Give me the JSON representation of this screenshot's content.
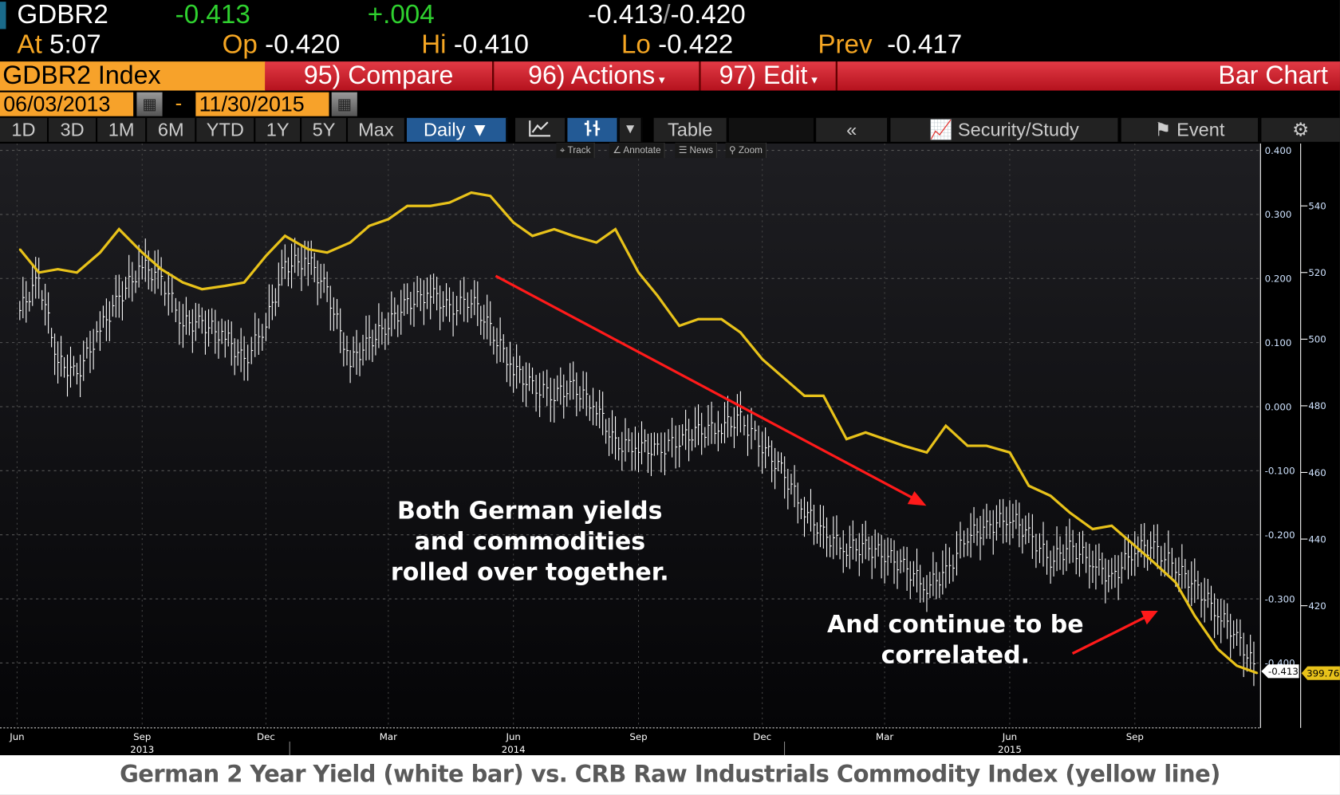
{
  "quote": {
    "ticker": "GDBR2",
    "last": "-0.413",
    "change": "+.004",
    "bid_ask_bid": "-0.413",
    "bid_ask_sep": "/",
    "bid_ask_ask": "-0.420",
    "at_label": "At",
    "at_value": "5:07",
    "op_label": "Op",
    "op_value": "-0.420",
    "hi_label": "Hi",
    "hi_value": "-0.410",
    "lo_label": "Lo",
    "lo_value": "-0.422",
    "prev_label": "Prev",
    "prev_value": "-0.417"
  },
  "menu": {
    "security": "GDBR2 Index",
    "compare": "95) Compare",
    "actions": "96) Actions",
    "edit": "97) Edit",
    "dropdown_glyph": "▾",
    "chart_type": "Bar Chart"
  },
  "dates": {
    "start": "06/03/2013",
    "sep": "-",
    "end": "11/30/2015"
  },
  "toolbar": {
    "periods": [
      "1D",
      "3D",
      "1M",
      "6M",
      "YTD",
      "1Y",
      "5Y",
      "Max"
    ],
    "frequency": "Daily ▼",
    "table": "Table",
    "collapse": "«",
    "security_study": "Security/Study",
    "event": "Event"
  },
  "mini_toolbar": {
    "track": "Track",
    "annotate": "Annotate",
    "news": "News",
    "zoom": "Zoom"
  },
  "annotations": {
    "text1": [
      "Both German yields",
      "and commodities",
      "rolled over together."
    ],
    "text2": [
      "And continue to be",
      "correlated."
    ]
  },
  "caption": "German 2 Year Yield (white bar) vs. CRB Raw Industrials Commodity Index (yellow line)",
  "colors": {
    "yield": "#ffffff",
    "crb": "#e8c21a",
    "arrow": "#ff1a1a",
    "menu_red": "#c8202b",
    "orange": "#f7a22a",
    "blue": "#235a95"
  },
  "chart_data": {
    "type": "line",
    "title": "German 2 Year Yield (white bar) vs. CRB Raw Industrials Commodity Index (yellow line)",
    "x_months": [
      {
        "label": "Jun",
        "date": "2013-06-01"
      },
      {
        "label": "Sep",
        "date": "2013-09-01"
      },
      {
        "label": "Dec",
        "date": "2013-12-01"
      },
      {
        "label": "Mar",
        "date": "2014-03-01"
      },
      {
        "label": "Jun",
        "date": "2014-06-01"
      },
      {
        "label": "Sep",
        "date": "2014-09-01"
      },
      {
        "label": "Dec",
        "date": "2014-12-01"
      },
      {
        "label": "Mar",
        "date": "2015-03-01"
      },
      {
        "label": "Jun",
        "date": "2015-06-01"
      },
      {
        "label": "Sep",
        "date": "2015-09-01"
      }
    ],
    "x_years": [
      {
        "label": "2013",
        "date": "2013-09-01"
      },
      {
        "label": "2014",
        "date": "2014-06-01"
      },
      {
        "label": "2015",
        "date": "2015-06-01"
      }
    ],
    "left_axis": {
      "ticks": [
        "0.400",
        "0.300",
        "0.200",
        "0.100",
        "0.000",
        "-0.100",
        "-0.200",
        "-0.300",
        "-0.400"
      ],
      "ylim": [
        -0.5,
        0.4
      ]
    },
    "right_axis": {
      "ticks": [
        "540",
        "520",
        "500",
        "480",
        "460",
        "440",
        "420"
      ],
      "ylim": [
        380,
        555
      ]
    },
    "last_values": {
      "yield": "-0.413",
      "crb": "399.76"
    },
    "dates": [
      "2013-06-03",
      "2013-06-17",
      "2013-07-01",
      "2013-07-15",
      "2013-08-01",
      "2013-08-15",
      "2013-09-01",
      "2013-09-15",
      "2013-10-01",
      "2013-10-15",
      "2013-11-01",
      "2013-11-15",
      "2013-12-01",
      "2013-12-15",
      "2014-01-01",
      "2014-01-15",
      "2014-02-01",
      "2014-02-15",
      "2014-03-01",
      "2014-03-15",
      "2014-04-01",
      "2014-04-15",
      "2014-05-01",
      "2014-05-15",
      "2014-06-01",
      "2014-06-15",
      "2014-07-01",
      "2014-07-15",
      "2014-08-01",
      "2014-08-15",
      "2014-09-01",
      "2014-09-15",
      "2014-10-01",
      "2014-10-15",
      "2014-11-01",
      "2014-11-15",
      "2014-12-01",
      "2014-12-15",
      "2015-01-01",
      "2015-01-15",
      "2015-02-01",
      "2015-02-15",
      "2015-03-01",
      "2015-03-15",
      "2015-04-01",
      "2015-04-15",
      "2015-05-01",
      "2015-05-15",
      "2015-06-01",
      "2015-06-15",
      "2015-07-01",
      "2015-07-15",
      "2015-08-01",
      "2015-08-15",
      "2015-09-01",
      "2015-09-15",
      "2015-10-01",
      "2015-10-15",
      "2015-11-01",
      "2015-11-15",
      "2015-11-30"
    ],
    "series": [
      {
        "name": "German 2 Year Yield",
        "axis": "left",
        "style": "bar",
        "values": [
          0.15,
          0.2,
          0.07,
          0.05,
          0.12,
          0.17,
          0.22,
          0.2,
          0.13,
          0.13,
          0.11,
          0.07,
          0.13,
          0.22,
          0.23,
          0.18,
          0.07,
          0.1,
          0.13,
          0.16,
          0.18,
          0.15,
          0.17,
          0.12,
          0.06,
          0.03,
          0.02,
          0.03,
          0.0,
          -0.06,
          -0.06,
          -0.07,
          -0.05,
          -0.04,
          -0.03,
          -0.02,
          -0.06,
          -0.1,
          -0.16,
          -0.2,
          -0.22,
          -0.22,
          -0.23,
          -0.25,
          -0.28,
          -0.26,
          -0.2,
          -0.19,
          -0.17,
          -0.2,
          -0.24,
          -0.22,
          -0.24,
          -0.27,
          -0.22,
          -0.22,
          -0.25,
          -0.28,
          -0.32,
          -0.36,
          -0.413
        ]
      },
      {
        "name": "CRB Raw Industrials",
        "axis": "right",
        "style": "line",
        "values": [
          527,
          520,
          521,
          520,
          526,
          533,
          526,
          521,
          517,
          515,
          516,
          517,
          525,
          531,
          527,
          526,
          529,
          534,
          536,
          540,
          540,
          541,
          544,
          543,
          535,
          531,
          533,
          531,
          529,
          533,
          520,
          513,
          504,
          506,
          506,
          502,
          494,
          489,
          483,
          483,
          470,
          472,
          470,
          468,
          466,
          474,
          468,
          468,
          466,
          456,
          453,
          448,
          443,
          444,
          438,
          433,
          427,
          417,
          407,
          402,
          399.76
        ]
      }
    ]
  }
}
